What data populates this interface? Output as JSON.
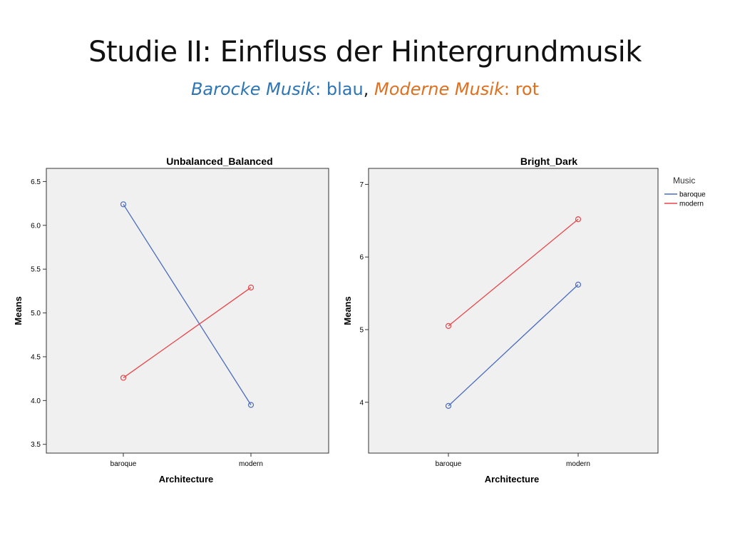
{
  "slide": {
    "title": "Studie II: Einfluss der Hintergrundmusik",
    "subtitle": {
      "baroque_label": "Barocke Musik",
      "colon1": ":",
      "baroque_color_word": "blau",
      "comma": ",",
      "modern_label": "Moderne Musik",
      "colon2": ":",
      "modern_color_word": "rot"
    }
  },
  "colors": {
    "baroque": "#4a6bbf",
    "modern": "#e8454a",
    "plot_bg": "#f0f0f0",
    "subtitle_blue": "#2e75b6",
    "subtitle_orange": "#e07020"
  },
  "legend": {
    "title": "Music",
    "items": [
      "baroque",
      "modern"
    ]
  },
  "chart_data": [
    {
      "type": "line",
      "title": "Unbalanced_Balanced",
      "xlabel": "Architecture",
      "ylabel": "Means",
      "categories": [
        "baroque",
        "modern"
      ],
      "ylim": [
        3.4,
        6.65
      ],
      "yticks": [
        "3.5",
        "4.0",
        "4.5",
        "5.0",
        "5.5",
        "6.0",
        "6.5"
      ],
      "series": [
        {
          "name": "baroque",
          "values": [
            6.24,
            3.95
          ]
        },
        {
          "name": "modern",
          "values": [
            4.26,
            5.29
          ]
        }
      ]
    },
    {
      "type": "line",
      "title": "Bright_Dark",
      "xlabel": "Architecture",
      "ylabel": "Means",
      "categories": [
        "baroque",
        "modern"
      ],
      "ylim": [
        3.3,
        7.22
      ],
      "yticks": [
        "4",
        "5",
        "6",
        "7"
      ],
      "series": [
        {
          "name": "baroque",
          "values": [
            3.95,
            5.62
          ]
        },
        {
          "name": "modern",
          "values": [
            5.05,
            6.52
          ]
        }
      ]
    }
  ]
}
